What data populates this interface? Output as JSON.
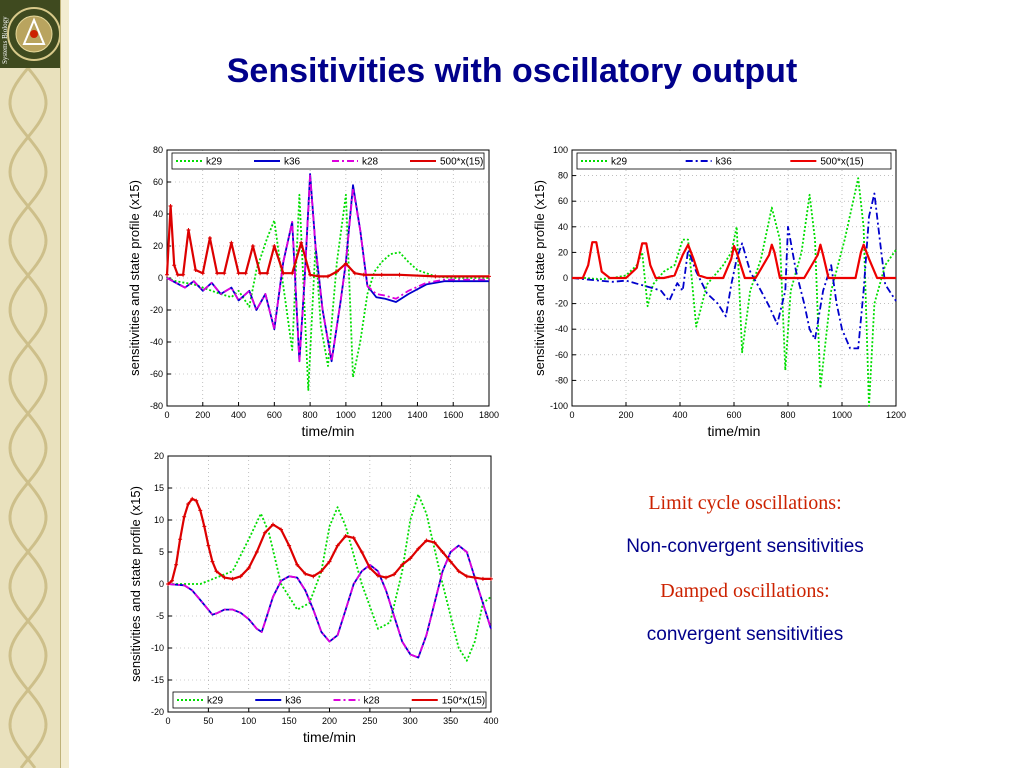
{
  "slide": {
    "title": "Sensitivities with oscillatory output",
    "sidebar_text": "Systems Biology",
    "notes": [
      "Limit cycle oscillations:",
      "Non-convergent sensitivities",
      "Damped oscillations:",
      "convergent sensitivities"
    ]
  },
  "chart_data": [
    {
      "type": "line",
      "xlabel": "time/min",
      "ylabel": "sensitivities and state profile (x15)",
      "xlim": [
        0,
        1800
      ],
      "ylim": [
        -80,
        80
      ],
      "xticks": [
        0,
        200,
        400,
        600,
        800,
        1000,
        1200,
        1400,
        1600,
        1800
      ],
      "yticks": [
        -80,
        -60,
        -40,
        -20,
        0,
        20,
        40,
        60,
        80
      ],
      "legend": "top",
      "grid": true,
      "series": [
        {
          "name": "k29",
          "color": "#00dd00",
          "style": "dotted",
          "x": [
            0,
            50,
            100,
            150,
            200,
            250,
            300,
            360,
            400,
            460,
            500,
            560,
            600,
            650,
            700,
            740,
            790,
            830,
            860,
            900,
            950,
            1000,
            1040,
            1080,
            1120,
            1160,
            1200,
            1250,
            1300,
            1350,
            1400,
            1500,
            1600,
            1700,
            1800
          ],
          "y": [
            0,
            -2,
            -3,
            -4,
            -6,
            -8,
            -10,
            -12,
            -8,
            -18,
            5,
            25,
            36,
            -5,
            -45,
            52,
            -70,
            20,
            -30,
            -55,
            10,
            52,
            -62,
            -40,
            -10,
            4,
            10,
            15,
            16,
            10,
            5,
            1,
            0,
            0,
            0
          ]
        },
        {
          "name": "k36",
          "color": "#0000cc",
          "style": "solid",
          "x": [
            0,
            50,
            100,
            150,
            200,
            250,
            300,
            360,
            400,
            460,
            500,
            550,
            600,
            650,
            700,
            740,
            770,
            800,
            830,
            870,
            920,
            970,
            1000,
            1040,
            1080,
            1120,
            1170,
            1220,
            1280,
            1350,
            1450,
            1550,
            1650,
            1800
          ],
          "y": [
            0,
            -3,
            -6,
            -2,
            -8,
            -3,
            -10,
            -6,
            -14,
            -8,
            -20,
            -10,
            -32,
            10,
            35,
            -52,
            0,
            65,
            20,
            -20,
            -52,
            -15,
            10,
            58,
            30,
            -5,
            -12,
            -13,
            -15,
            -10,
            -4,
            -2,
            -2,
            -2
          ]
        },
        {
          "name": "k28",
          "color": "#dd00dd",
          "style": "dashdot",
          "x": [
            0,
            50,
            100,
            150,
            200,
            250,
            300,
            360,
            400,
            460,
            500,
            550,
            600,
            650,
            700,
            740,
            770,
            800,
            830,
            870,
            920,
            970,
            1000,
            1040,
            1080,
            1120,
            1170,
            1220,
            1280,
            1350,
            1450,
            1550,
            1650,
            1800
          ],
          "y": [
            0,
            -3,
            -6,
            -2,
            -8,
            -3,
            -10,
            -6,
            -14,
            -8,
            -20,
            -10,
            -32,
            10,
            35,
            -52,
            0,
            64,
            20,
            -20,
            -52,
            -15,
            10,
            56,
            30,
            -5,
            -10,
            -11,
            -13,
            -8,
            -3,
            -1,
            -1,
            -1
          ]
        },
        {
          "name": "500*x(15)",
          "color": "#dd0000",
          "style": "solid-plus",
          "x": [
            0,
            20,
            40,
            60,
            90,
            120,
            160,
            200,
            240,
            280,
            320,
            360,
            400,
            440,
            480,
            520,
            560,
            600,
            650,
            700,
            750,
            800,
            850,
            900,
            950,
            1000,
            1050,
            1100,
            1200,
            1300,
            1500,
            1800
          ],
          "y": [
            2,
            45,
            8,
            2,
            2,
            30,
            5,
            3,
            25,
            3,
            3,
            22,
            3,
            3,
            20,
            3,
            3,
            20,
            3,
            3,
            22,
            2,
            1,
            1,
            4,
            9,
            3,
            2,
            2,
            2,
            1,
            1
          ]
        }
      ]
    },
    {
      "type": "line",
      "xlabel": "time/min",
      "ylabel": "sensitivities and state profile (x15)",
      "xlim": [
        0,
        1200
      ],
      "ylim": [
        -100,
        100
      ],
      "xticks": [
        0,
        200,
        400,
        600,
        800,
        1000,
        1200
      ],
      "yticks": [
        -100,
        -80,
        -60,
        -40,
        -20,
        0,
        20,
        40,
        60,
        80,
        100
      ],
      "legend": "top",
      "grid": true,
      "series": [
        {
          "name": "k29",
          "color": "#00dd00",
          "style": "dotted",
          "x": [
            0,
            50,
            100,
            150,
            200,
            220,
            240,
            260,
            280,
            300,
            340,
            380,
            410,
            430,
            460,
            500,
            560,
            590,
            610,
            630,
            660,
            700,
            740,
            770,
            790,
            810,
            850,
            880,
            900,
            920,
            960,
            1010,
            1060,
            1080,
            1100,
            1120,
            1160,
            1200
          ],
          "y": [
            0,
            0,
            -1,
            0,
            2,
            6,
            10,
            20,
            -22,
            -5,
            5,
            10,
            30,
            30,
            -38,
            -5,
            10,
            20,
            40,
            -58,
            -10,
            15,
            55,
            30,
            -72,
            -10,
            20,
            65,
            30,
            -86,
            -10,
            30,
            78,
            40,
            -100,
            -20,
            10,
            22
          ]
        },
        {
          "name": "k36",
          "color": "#0000cc",
          "style": "dashdot",
          "x": [
            0,
            100,
            150,
            200,
            250,
            300,
            330,
            360,
            390,
            410,
            430,
            460,
            500,
            540,
            570,
            590,
            610,
            630,
            660,
            700,
            730,
            760,
            790,
            800,
            830,
            860,
            880,
            900,
            930,
            960,
            980,
            1000,
            1030,
            1060,
            1080,
            1100,
            1120,
            1140,
            1160,
            1200
          ],
          "y": [
            0,
            -2,
            -3,
            -2,
            -5,
            -8,
            -10,
            -18,
            -4,
            -10,
            22,
            5,
            -12,
            -20,
            -30,
            -5,
            15,
            27,
            5,
            -10,
            -22,
            -36,
            -10,
            40,
            5,
            -20,
            -40,
            -48,
            -10,
            10,
            -20,
            -40,
            -55,
            -55,
            -10,
            48,
            66,
            30,
            -5,
            -18
          ]
        },
        {
          "name": "500*x(15)",
          "color": "#ee0000",
          "style": "solid",
          "x": [
            0,
            40,
            60,
            75,
            90,
            110,
            140,
            200,
            240,
            260,
            275,
            290,
            310,
            340,
            380,
            410,
            430,
            450,
            470,
            500,
            560,
            590,
            600,
            610,
            640,
            680,
            730,
            740,
            750,
            770,
            800,
            860,
            910,
            920,
            930,
            950,
            1000,
            1050,
            1070,
            1080,
            1100,
            1130,
            1200
          ],
          "y": [
            0,
            0,
            10,
            28,
            28,
            5,
            0,
            0,
            8,
            27,
            27,
            10,
            0,
            0,
            2,
            18,
            26,
            15,
            2,
            0,
            0,
            15,
            25,
            20,
            0,
            0,
            18,
            26,
            20,
            0,
            0,
            0,
            18,
            26,
            18,
            0,
            0,
            0,
            20,
            26,
            15,
            0,
            0
          ]
        }
      ]
    },
    {
      "type": "line",
      "xlabel": "time/min",
      "ylabel": "sensitivities and state profile (x15)",
      "xlim": [
        0,
        400
      ],
      "ylim": [
        -20,
        20
      ],
      "xticks": [
        0,
        50,
        100,
        150,
        200,
        250,
        300,
        350,
        400
      ],
      "yticks": [
        -20,
        -15,
        -10,
        -5,
        0,
        5,
        10,
        15,
        20
      ],
      "legend": "bottom",
      "grid": true,
      "series": [
        {
          "name": "k29",
          "color": "#00dd00",
          "style": "dotted",
          "x": [
            0,
            20,
            40,
            60,
            80,
            100,
            115,
            125,
            140,
            160,
            175,
            190,
            200,
            210,
            220,
            240,
            260,
            275,
            290,
            300,
            310,
            320,
            340,
            360,
            370,
            380,
            390,
            400
          ],
          "y": [
            0,
            0,
            0,
            1,
            2,
            7,
            11,
            8,
            0,
            -4,
            -3,
            2,
            9,
            12,
            9,
            0,
            -7,
            -6,
            2,
            10,
            14,
            11,
            0,
            -10,
            -12,
            -9,
            -3,
            -2
          ]
        },
        {
          "name": "k36",
          "color": "#0000cc",
          "style": "solid",
          "x": [
            0,
            20,
            30,
            40,
            55,
            60,
            70,
            80,
            90,
            100,
            110,
            116,
            120,
            130,
            140,
            150,
            160,
            170,
            180,
            190,
            200,
            210,
            220,
            230,
            240,
            250,
            260,
            270,
            280,
            290,
            300,
            310,
            320,
            330,
            340,
            350,
            360,
            370,
            380,
            390,
            400
          ],
          "y": [
            0,
            -0.2,
            -1,
            -2.5,
            -4.8,
            -4.6,
            -4,
            -4,
            -4.5,
            -5.5,
            -7,
            -7.5,
            -6,
            -2,
            0.5,
            1.2,
            1,
            -1,
            -4,
            -7.5,
            -9,
            -8,
            -4,
            0,
            2,
            3,
            2,
            -1,
            -5,
            -9,
            -11,
            -11.5,
            -8,
            -3,
            2,
            5,
            6,
            5,
            1,
            -3,
            -7
          ]
        },
        {
          "name": "k28",
          "color": "#dd00dd",
          "style": "dashdot",
          "x": [
            0,
            20,
            30,
            40,
            55,
            60,
            70,
            80,
            90,
            100,
            110,
            116,
            120,
            130,
            140,
            150,
            160,
            170,
            180,
            190,
            200,
            210,
            220,
            230,
            240,
            250,
            260,
            270,
            280,
            290,
            300,
            310,
            320,
            330,
            340,
            350,
            360,
            370,
            380,
            390,
            400
          ],
          "y": [
            0,
            -0.2,
            -1,
            -2.5,
            -4.8,
            -4.6,
            -4,
            -4,
            -4.5,
            -5.5,
            -7,
            -7.5,
            -6,
            -2,
            0.5,
            1.2,
            1,
            -1,
            -4,
            -7.5,
            -9,
            -8,
            -4,
            0,
            2,
            3,
            2,
            -1,
            -5,
            -9,
            -11,
            -11.5,
            -8,
            -3,
            2,
            5,
            6,
            5,
            1,
            -3,
            -7
          ]
        },
        {
          "name": "150*x(15)",
          "color": "#dd0000",
          "style": "solid-plus",
          "x": [
            0,
            5,
            10,
            15,
            20,
            25,
            30,
            35,
            40,
            45,
            50,
            55,
            60,
            70,
            80,
            90,
            100,
            110,
            120,
            130,
            140,
            150,
            160,
            170,
            180,
            190,
            200,
            210,
            220,
            230,
            240,
            250,
            260,
            270,
            280,
            290,
            300,
            310,
            320,
            330,
            340,
            350,
            360,
            370,
            380,
            390,
            400
          ],
          "y": [
            0,
            0.5,
            3,
            7,
            10.5,
            12.5,
            13.3,
            13,
            11.5,
            9,
            6,
            3.5,
            2,
            1,
            0.8,
            1.2,
            2.5,
            5,
            8,
            9.3,
            8.5,
            6,
            3,
            1.6,
            1.2,
            2,
            3.5,
            6,
            7.5,
            7.2,
            5,
            2.5,
            1.3,
            1,
            1.5,
            3,
            4,
            5.5,
            6.8,
            6.5,
            5,
            3.5,
            2,
            1.2,
            1,
            0.8,
            0.8
          ]
        }
      ]
    }
  ]
}
